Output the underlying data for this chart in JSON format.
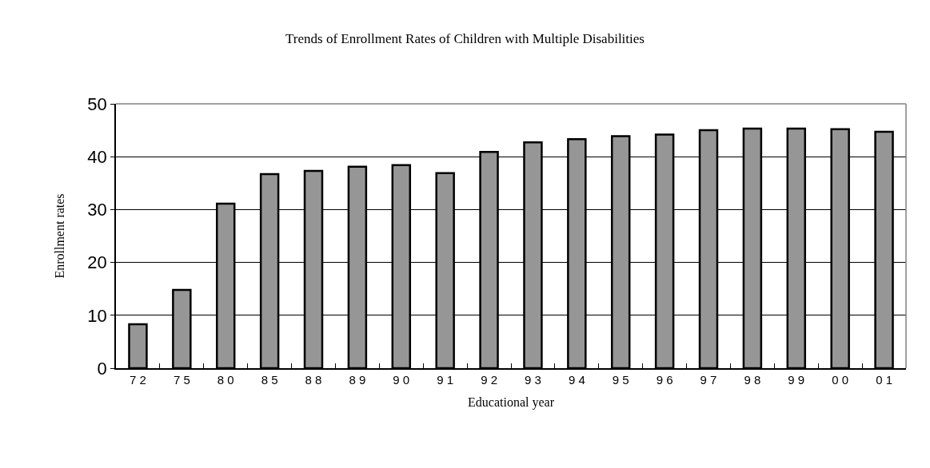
{
  "chart_data": {
    "type": "bar",
    "title": "Trends of Enrollment Rates of Children with Multiple Disabilities",
    "xlabel": "Educational year",
    "ylabel": "Enrollment rates",
    "categories": [
      "7 2",
      "7 5",
      "8 0",
      "8 5",
      "8 8",
      "8 9",
      "9 0",
      "9 1",
      "9 2",
      "9 3",
      "9 4",
      "9 5",
      "9 6",
      "9 7",
      "9 8",
      "9 9",
      "0 0",
      "0 1"
    ],
    "values": [
      8.3,
      14.8,
      31.1,
      36.7,
      37.3,
      38.1,
      38.4,
      36.9,
      40.9,
      42.7,
      43.3,
      43.9,
      44.2,
      45.0,
      45.3,
      45.3,
      45.2,
      44.7
    ],
    "color": "#969696",
    "ylim": [
      0,
      50
    ],
    "yticks": [
      0,
      10,
      20,
      30,
      40,
      50
    ],
    "grid": "y"
  }
}
